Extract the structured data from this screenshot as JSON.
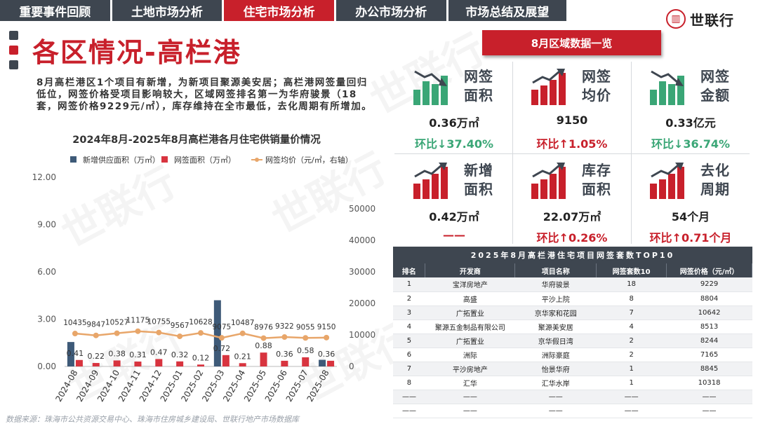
{
  "nav": {
    "tabs": [
      {
        "label": "重要事件回顾",
        "active": false
      },
      {
        "label": "土地市场分析",
        "active": false
      },
      {
        "label": "住宅市场分析",
        "active": true
      },
      {
        "label": "办公市场分析",
        "active": false
      },
      {
        "label": "市场总结及展望",
        "active": false
      }
    ]
  },
  "brand": {
    "name": "世联行"
  },
  "title": "各区情况-高栏港",
  "summary": "8月高栏港区1个项目有新增，为新项目聚源美安居；高栏港网签量回归低位，网签价格受项目影响较大，区域网签排名第一为华府骏景（18套，网签价格9229元/㎡），库存维持在全市最低，去化周期有所增加。",
  "chart_title": "2024年8月-2025年8月高栏港各月住宅供销量价情况",
  "source": "数据来源：珠海市公共资源交易中心、珠海市住房城乡建设局、世联行地产市场数据库",
  "chart_data": {
    "type": "bar",
    "categories": [
      "2024-08",
      "2024-09",
      "2024-10",
      "2024-11",
      "2024-12",
      "2025-01",
      "2025-02",
      "2025-03",
      "2025-04",
      "2025-05",
      "2025-06",
      "2025-07",
      "2025-08"
    ],
    "series": [
      {
        "name": "新增供应面积（万㎡）",
        "type": "bar",
        "axis": "left",
        "color": "#3e5a78",
        "values": [
          1.55,
          0,
          0,
          0,
          0,
          0,
          0,
          4.2,
          0,
          0,
          0,
          0,
          0.42
        ],
        "labels": [
          "",
          "",
          "",
          "",
          "",
          "",
          "",
          "",
          "",
          "",
          "",
          "",
          ""
        ]
      },
      {
        "name": "网签面积（万㎡）",
        "type": "bar",
        "axis": "left",
        "color": "#d8343f",
        "values": [
          0.41,
          0.22,
          0.38,
          0.31,
          0.47,
          0.32,
          0.12,
          0.72,
          0.21,
          0.88,
          0.36,
          0.58,
          0.36
        ],
        "labels": [
          "0.41",
          "0.22",
          "0.38",
          "0.31",
          "0.47",
          "0.32",
          "0.12",
          "0.72",
          "0.21",
          "0.88",
          "0.36",
          "0.58",
          "0.36"
        ]
      },
      {
        "name": "网签均价（元/㎡，右轴）",
        "type": "line",
        "axis": "right",
        "color": "#e8a66a",
        "values": [
          10435,
          9847,
          10527,
          11175,
          10755,
          9567,
          10628,
          9075,
          10487,
          8976,
          9322,
          9055,
          9150
        ],
        "labels": [
          "10435",
          "9847",
          "10527",
          "11175",
          "10755",
          "9567",
          "10628",
          "9075",
          "10487",
          "8976",
          "9322",
          "9055",
          "9150"
        ]
      }
    ],
    "y_left": {
      "min": 0,
      "max": 12,
      "ticks": [
        "0.00",
        "3.00",
        "6.00",
        "9.00",
        "12.00"
      ]
    },
    "y_right": {
      "min": 0,
      "max": 60000,
      "ticks": [
        "0",
        "10000",
        "20000",
        "30000",
        "40000",
        "50000"
      ]
    },
    "legend": "top",
    "grid": true
  },
  "panel": {
    "header": "8月区域数据一览",
    "metrics": [
      {
        "label": "网签面积",
        "value": "0.36万㎡",
        "change": "环比↓37.40%",
        "dir": "down",
        "icon": "bar-chart-down-icon"
      },
      {
        "label": "网签均价",
        "value": "9150",
        "change": "环比↑1.05%",
        "dir": "up",
        "icon": "bar-chart-up-icon"
      },
      {
        "label": "网签金额",
        "value": "0.33亿元",
        "change": "环比↓36.74%",
        "dir": "down",
        "icon": "bar-chart-down-icon"
      },
      {
        "label": "新增面积",
        "value": "0.42万㎡",
        "change": "——",
        "dir": "up",
        "icon": "bar-chart-up-icon"
      },
      {
        "label": "库存面积",
        "value": "22.07万㎡",
        "change": "环比↑0.26%",
        "dir": "up",
        "icon": "bar-chart-up-icon"
      },
      {
        "label": "去化周期",
        "value": "54个月",
        "change": "环比↑0.71个月",
        "dir": "up",
        "icon": "bar-chart-up-icon"
      }
    ]
  },
  "table": {
    "title": "2025年8月高栏港住宅项目网签套数TOP10",
    "headers": [
      "排名",
      "开发商",
      "项目名称",
      "网签套数10",
      "网签价格（元/㎡）"
    ],
    "rows": [
      [
        "1",
        "宝洋房地产",
        "华府骏景",
        "18",
        "9229"
      ],
      [
        "2",
        "高盛",
        "平沙上院",
        "8",
        "8804"
      ],
      [
        "3",
        "广拓置业",
        "京华家和花园",
        "7",
        "10642"
      ],
      [
        "4",
        "聚源五金制品有限公司",
        "聚源美安居",
        "4",
        "8513"
      ],
      [
        "5",
        "广拓置业",
        "京华假日湾",
        "2",
        "8244"
      ],
      [
        "6",
        "洲际",
        "洲际豪庭",
        "2",
        "7165"
      ],
      [
        "7",
        "平沙房地产",
        "怡景华府",
        "1",
        "8845"
      ],
      [
        "8",
        "汇华",
        "汇华水岸",
        "1",
        "10318"
      ],
      [
        "——",
        "——",
        "——",
        "——",
        "——"
      ],
      [
        "——",
        "——",
        "——",
        "——",
        "——"
      ]
    ]
  },
  "colors": {
    "accent": "#c8202b",
    "navy": "#3e4650",
    "green": "#3aa676",
    "bar_dark": "#3e5a78",
    "line": "#e8a66a"
  }
}
